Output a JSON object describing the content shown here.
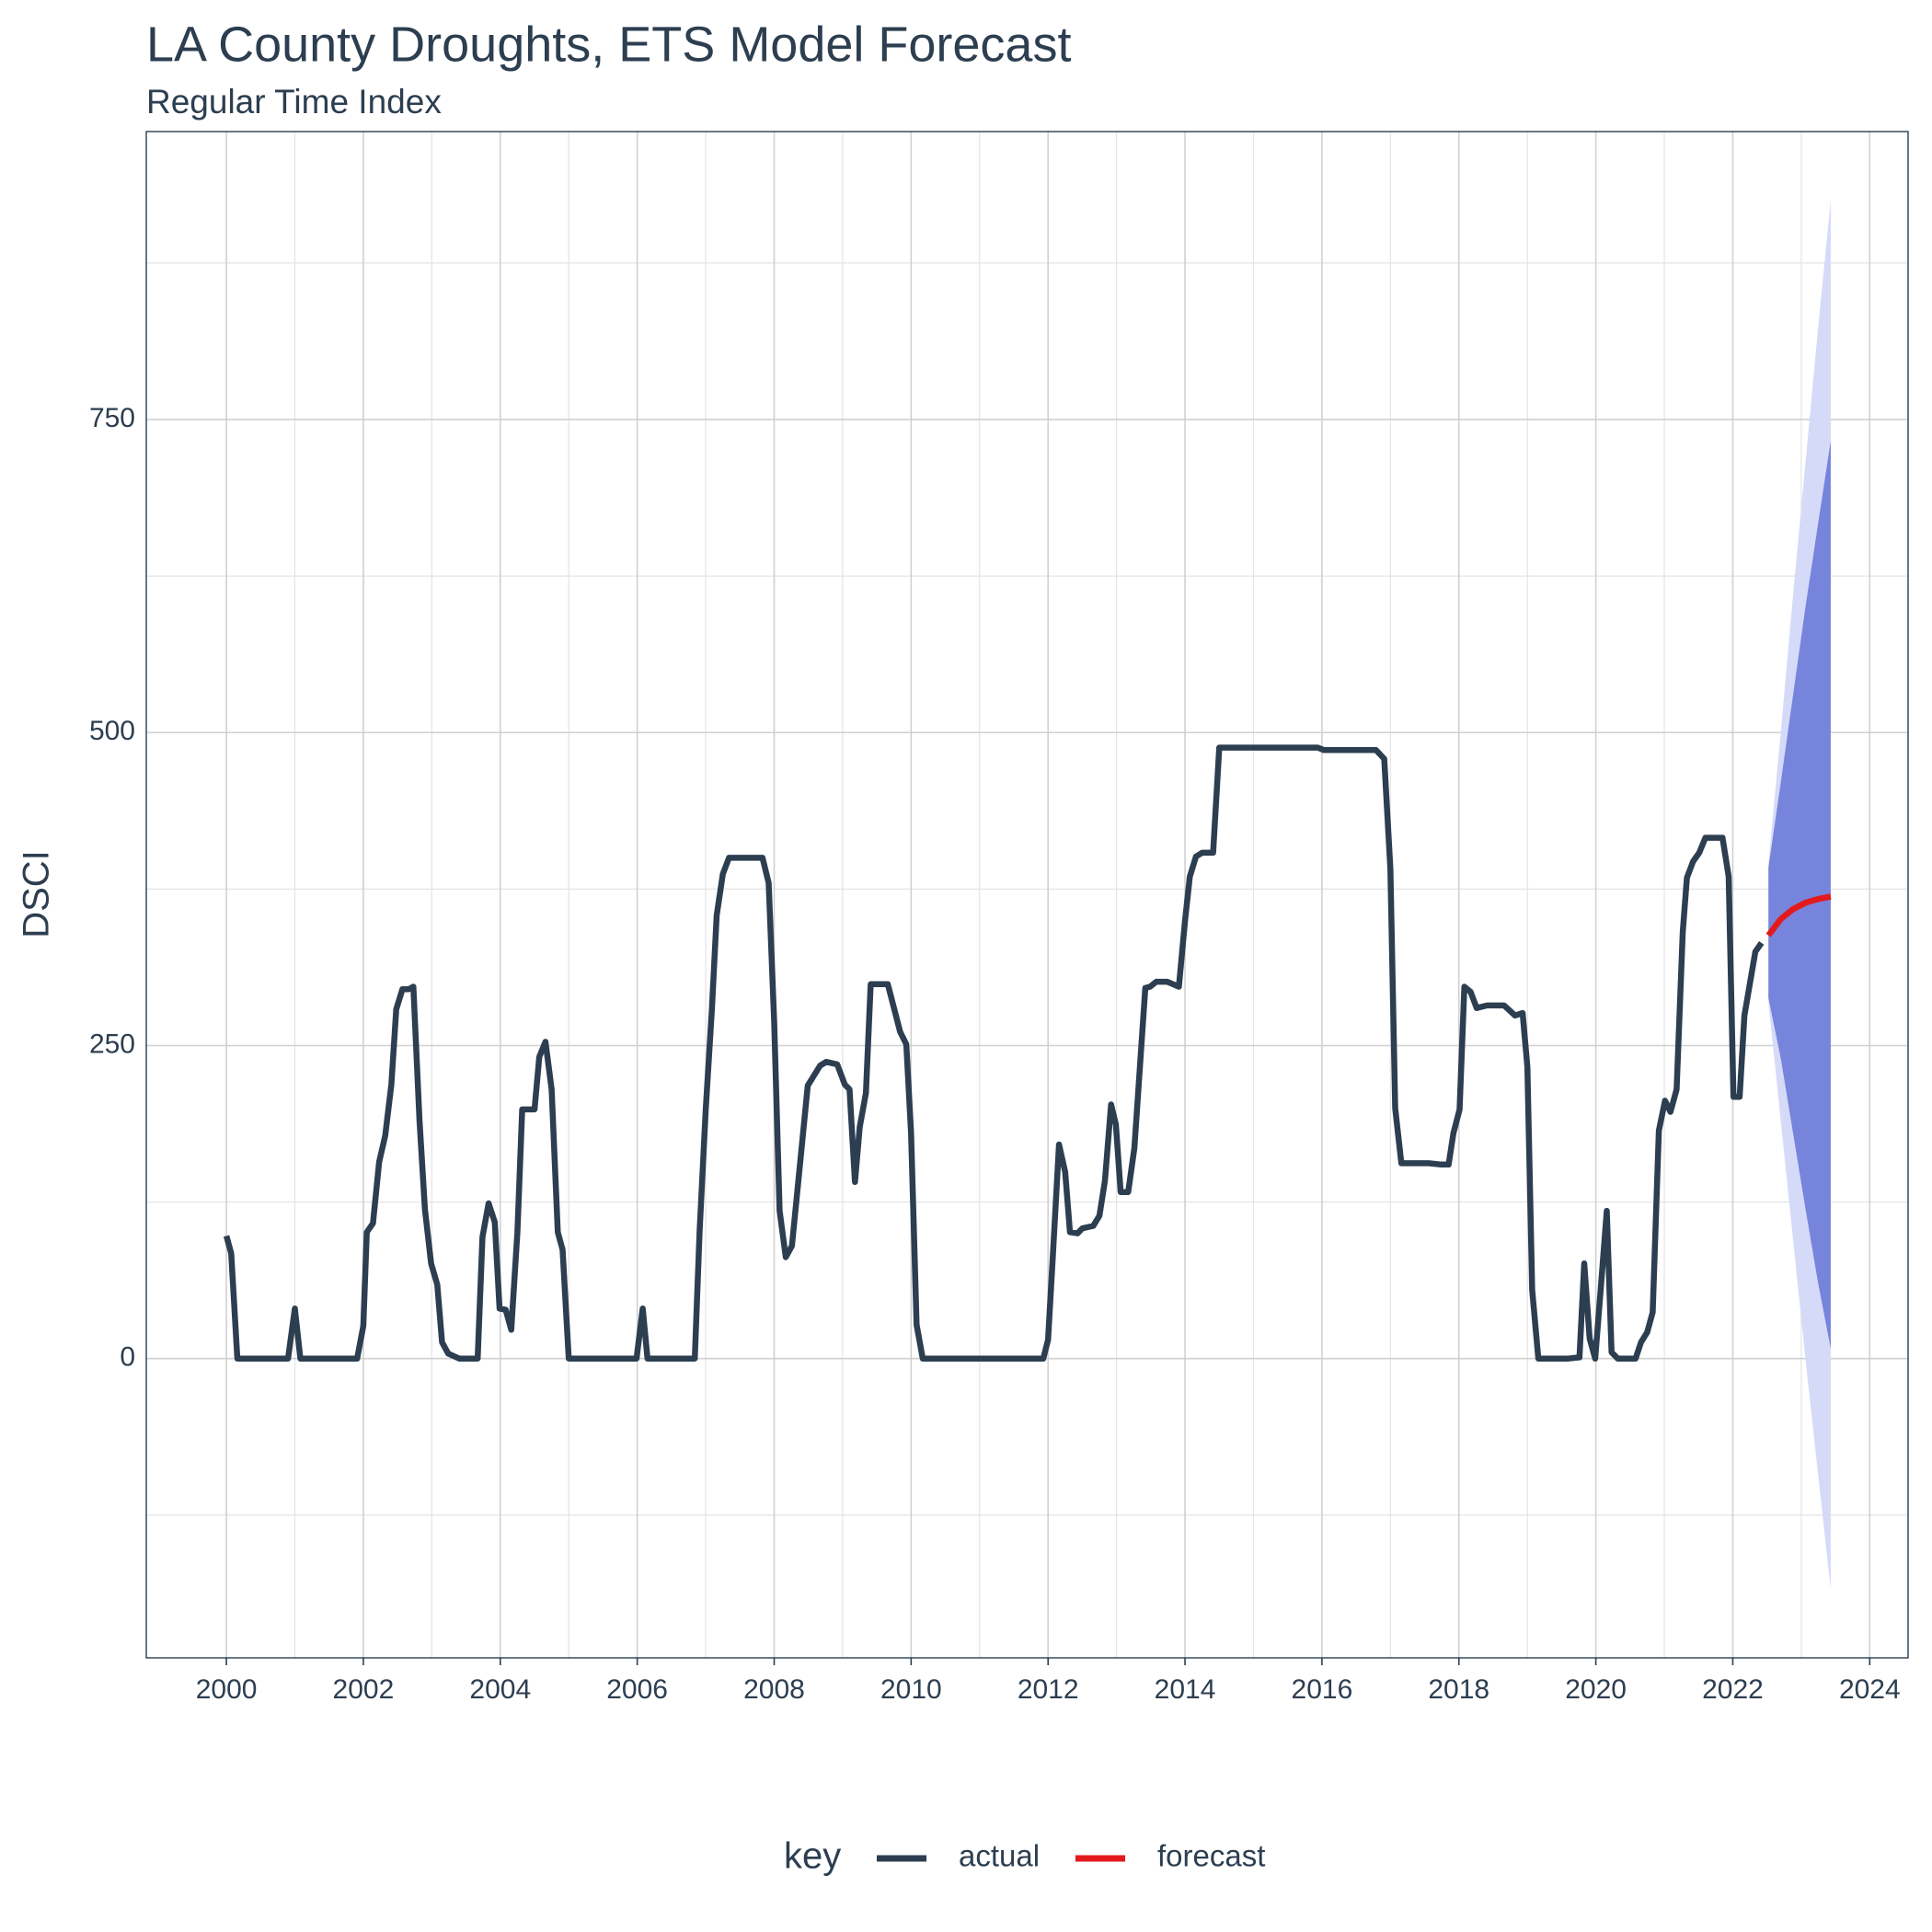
{
  "chart_data": {
    "type": "line",
    "title": "LA County Droughts, ETS Model Forecast",
    "subtitle": "Regular Time Index",
    "y_label": "DSCI",
    "legend_title": "key",
    "legend_position": "bottom",
    "grid": true,
    "xlim": [
      1998.83,
      2024.56
    ],
    "ylim": [
      -239,
      980
    ],
    "xticks": [
      2000,
      2002,
      2004,
      2006,
      2008,
      2010,
      2012,
      2014,
      2016,
      2018,
      2020,
      2022,
      2024
    ],
    "yticks": [
      0,
      250,
      500,
      750
    ],
    "x_minor_ticks": [
      2001,
      2003,
      2005,
      2007,
      2009,
      2011,
      2013,
      2015,
      2017,
      2019,
      2021,
      2023
    ],
    "y_minor_ticks": [
      -125,
      125,
      375,
      625,
      875
    ],
    "bands": [
      {
        "color": "#d5daf9",
        "x": [
          2022.52,
          2022.7,
          2022.88,
          2023.06,
          2023.24,
          2023.43
        ],
        "upper": [
          395,
          500,
          610,
          715,
          820,
          925
        ],
        "lower": [
          285,
          190,
          95,
          0,
          -90,
          -184
        ]
      },
      {
        "color": "#7784dc",
        "x": [
          2022.52,
          2022.7,
          2022.88,
          2023.06,
          2023.24,
          2023.43
        ],
        "upper": [
          392,
          460,
          530,
          600,
          665,
          733
        ],
        "lower": [
          288,
          240,
          180,
          120,
          62,
          8
        ]
      }
    ],
    "series": [
      {
        "name": "actual",
        "color": "#2c3e50",
        "x": [
          2000.0,
          2000.07,
          2000.16,
          2000.9,
          2001.0,
          2001.08,
          2001.91,
          2002.0,
          2002.05,
          2002.14,
          2002.23,
          2002.32,
          2002.41,
          2002.48,
          2002.57,
          2002.66,
          2002.73,
          2002.82,
          2002.9,
          2002.99,
          2003.08,
          2003.15,
          2003.24,
          2003.4,
          2003.67,
          2003.74,
          2003.83,
          2003.92,
          2003.99,
          2004.08,
          2004.16,
          2004.25,
          2004.32,
          2004.5,
          2004.57,
          2004.66,
          2004.75,
          2004.84,
          2004.91,
          2005.0,
          2005.99,
          2006.08,
          2006.15,
          2006.84,
          2006.91,
          2007.0,
          2007.09,
          2007.16,
          2007.25,
          2007.34,
          2007.83,
          2007.92,
          2008.0,
          2008.08,
          2008.17,
          2008.26,
          2008.49,
          2008.67,
          2008.76,
          2008.92,
          2009.03,
          2009.1,
          2009.18,
          2009.25,
          2009.34,
          2009.41,
          2009.66,
          2009.84,
          2009.93,
          2010.0,
          2010.08,
          2010.17,
          2011.93,
          2012.0,
          2012.07,
          2012.16,
          2012.25,
          2012.32,
          2012.43,
          2012.5,
          2012.66,
          2012.75,
          2012.83,
          2012.92,
          2012.99,
          2013.06,
          2013.17,
          2013.26,
          2013.42,
          2013.49,
          2013.58,
          2013.74,
          2013.91,
          2014.0,
          2014.07,
          2014.16,
          2014.25,
          2014.41,
          2014.5,
          2015.94,
          2016.03,
          2016.79,
          2016.91,
          2017.0,
          2017.07,
          2017.16,
          2017.56,
          2017.74,
          2017.85,
          2017.92,
          2018.01,
          2018.08,
          2018.17,
          2018.26,
          2018.41,
          2018.66,
          2018.82,
          2018.93,
          2019.0,
          2019.07,
          2019.16,
          2019.6,
          2019.76,
          2019.83,
          2019.91,
          2019.99,
          2020.08,
          2020.16,
          2020.23,
          2020.32,
          2020.58,
          2020.66,
          2020.75,
          2020.83,
          2020.92,
          2021.01,
          2021.09,
          2021.18,
          2021.27,
          2021.33,
          2021.42,
          2021.51,
          2021.6,
          2021.85,
          2021.94,
          2022.01,
          2022.1,
          2022.17,
          2022.33,
          2022.42
        ],
        "values": [
          98,
          84,
          0,
          0,
          40,
          0,
          0,
          26,
          101,
          108,
          157,
          178,
          219,
          279,
          295,
          295,
          297,
          190,
          119,
          76,
          59,
          13,
          4,
          0,
          0,
          97,
          124,
          109,
          40,
          39,
          23,
          101,
          199,
          199,
          241,
          253,
          215,
          101,
          87,
          0,
          0,
          40,
          0,
          0,
          101,
          199,
          279,
          354,
          387,
          400,
          400,
          380,
          269,
          118,
          81,
          90,
          218,
          234,
          237,
          235,
          219,
          215,
          141,
          185,
          212,
          299,
          299,
          261,
          251,
          180,
          27,
          0,
          0,
          15,
          82,
          171,
          149,
          101,
          100,
          104,
          106,
          114,
          142,
          203,
          187,
          133,
          133,
          168,
          296,
          297,
          301,
          301,
          297,
          350,
          385,
          401,
          404,
          404,
          488,
          488,
          486,
          486,
          479,
          391,
          200,
          156,
          156,
          155,
          155,
          180,
          199,
          297,
          293,
          280,
          282,
          282,
          274,
          276,
          233,
          55,
          0,
          0,
          1,
          76,
          16,
          0,
          62,
          118,
          5,
          0,
          0,
          13,
          21,
          37,
          182,
          206,
          197,
          215,
          341,
          384,
          397,
          404,
          416,
          416,
          385,
          209,
          209,
          274,
          325,
          332
        ]
      },
      {
        "name": "forecast",
        "color": "#e31a1c",
        "x": [
          2022.52,
          2022.7,
          2022.88,
          2023.06,
          2023.24,
          2023.43
        ],
        "values": [
          338,
          351,
          359,
          364,
          367,
          369
        ]
      }
    ]
  }
}
